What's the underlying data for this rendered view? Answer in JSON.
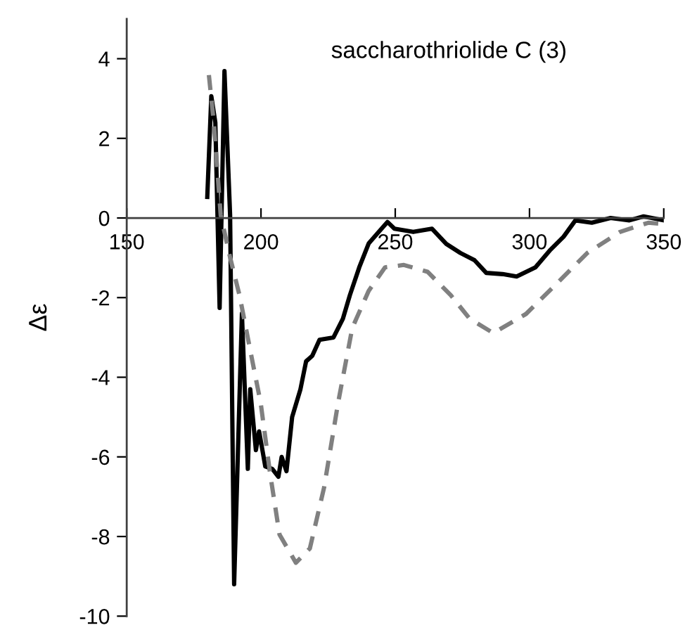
{
  "chart_data": {
    "type": "line",
    "title": "saccharothriolide C (3)",
    "ylabel": "Δε",
    "xlim": [
      150,
      350
    ],
    "ylim": [
      -10,
      5
    ],
    "xticks": [
      150,
      200,
      250,
      300,
      350
    ],
    "yticks": [
      -10,
      -8,
      -6,
      -4,
      -2,
      0,
      2,
      4
    ],
    "grid": false,
    "legend": false,
    "marker": "none",
    "series": [
      {
        "color": "#000000",
        "line_style": "solid",
        "x": [
          180,
          181.5,
          183,
          184.6,
          186.4,
          188.5,
          190,
          192.9,
          195.1,
          196,
          198.1,
          199.3,
          201.6,
          204.2,
          206.5,
          207.7,
          209.5,
          211.6,
          214.7,
          216.8,
          219.1,
          221.8,
          227,
          230.5,
          233.1,
          236.6,
          240.1,
          244.5,
          247.1,
          249.7,
          256.7,
          263.7,
          269,
          274.3,
          279.5,
          283.9,
          290,
          295.2,
          302.2,
          307.5,
          312.7,
          317.1,
          323.2,
          330.2,
          337.2,
          342.5,
          350
        ],
        "values": [
          0.53,
          3.06,
          2.4,
          -2.26,
          3.69,
          0.07,
          -9.2,
          -2.4,
          -6.3,
          -4.3,
          -5.83,
          -5.36,
          -6.24,
          -6.3,
          -6.5,
          -6.0,
          -6.36,
          -5.0,
          -4.3,
          -3.6,
          -3.46,
          -3.06,
          -3.0,
          -2.53,
          -1.94,
          -1.24,
          -0.64,
          -0.3,
          -0.1,
          -0.27,
          -0.35,
          -0.27,
          -0.65,
          -0.88,
          -1.06,
          -1.38,
          -1.41,
          -1.47,
          -1.24,
          -0.82,
          -0.47,
          -0.06,
          -0.12,
          0,
          -0.06,
          0.04,
          -0.06
        ]
      },
      {
        "color": "#808080",
        "line_style": "dashed",
        "x": [
          180.6,
          182.4,
          185,
          188.5,
          192,
          196.4,
          199.9,
          203.4,
          206.9,
          213,
          218.2,
          223.5,
          228.7,
          234,
          240.1,
          246.2,
          253.2,
          262,
          270.7,
          277.7,
          286.5,
          298.7,
          309.2,
          321.5,
          333.7,
          344.2,
          349.5
        ],
        "values": [
          3.59,
          2.41,
          0.07,
          -0.99,
          -1.94,
          -3.46,
          -4.65,
          -6.42,
          -7.95,
          -8.66,
          -8.3,
          -6.77,
          -4.65,
          -2.76,
          -1.83,
          -1.24,
          -1.18,
          -1.35,
          -1.94,
          -2.53,
          -2.89,
          -2.41,
          -1.71,
          -0.88,
          -0.35,
          -0.12,
          -0.15
        ]
      }
    ]
  }
}
